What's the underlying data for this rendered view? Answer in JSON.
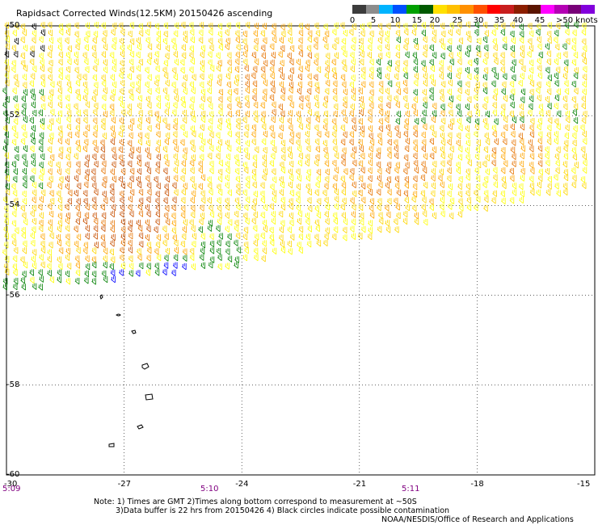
{
  "title": "Rapidsact Corrected Winds(12.5KM) 20150426 ascending",
  "legend": {
    "labels": [
      "0",
      "5",
      "10",
      "15",
      "20",
      "25",
      "30",
      "35",
      "40",
      "45",
      ">50 knots"
    ],
    "colors": [
      "#3c3c3c",
      "#8c8c8c",
      "#00b4ff",
      "#0050ff",
      "#00a000",
      "#005a00",
      "#ffe000",
      "#ffc000",
      "#ff9000",
      "#ff5000",
      "#ff0000",
      "#c81e1e",
      "#8c1e00",
      "#5a1400",
      "#ff00ff",
      "#b400b4",
      "#780078",
      "#8200dc"
    ]
  },
  "axes": {
    "lat_labels": [
      "-50",
      "-52",
      "-54",
      "-56",
      "-58",
      "-60"
    ],
    "lon_labels": [
      "-30",
      "-27",
      "-24",
      "-21",
      "-18",
      "-15"
    ],
    "time_labels": [
      "5:09",
      "5:10",
      "5:11"
    ]
  },
  "notes": [
    "Note: 1) Times are GMT 2)Times along bottom correspond to measurement at ~50S",
    "3)Data buffer is 22 hrs from 20150426 4) Black circles indicate possible contamination",
    "NOAA/NESDIS/Office of Research and Applications"
  ],
  "map": {
    "lat_range": [
      -60,
      -50
    ],
    "lon_range": [
      -30,
      -15
    ],
    "grid": true,
    "wind_colors": {
      "lt15": "#000000",
      "15_20": "#0000ff",
      "20_25": "#008000",
      "25_30": "#ffff00",
      "30_35": "#ffd700",
      "35_40": "#ffa500",
      "40_45": "#e67300",
      "45_50": "#c85000"
    }
  }
}
